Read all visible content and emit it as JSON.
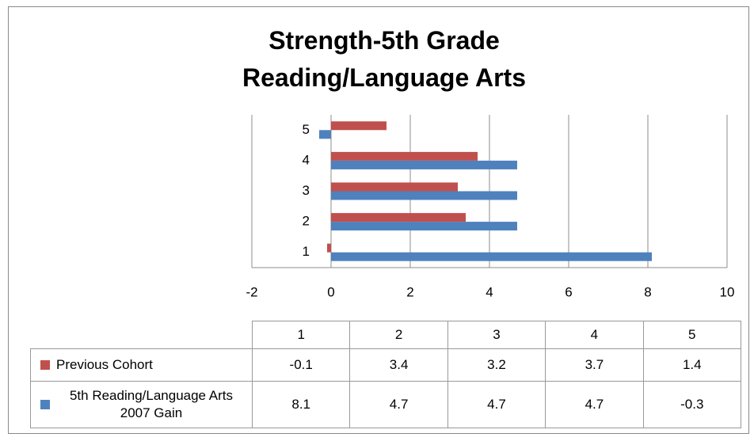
{
  "chart_data": {
    "type": "barh",
    "title": "Strength-5th Grade Reading/Language Arts",
    "categories": [
      "1",
      "2",
      "3",
      "4",
      "5"
    ],
    "series": [
      {
        "name": "Previous Cohort",
        "color": "#c0504d",
        "values": [
          -0.1,
          3.4,
          3.2,
          3.7,
          1.4
        ]
      },
      {
        "name": "5th Reading/Language Arts 2007 Gain",
        "color": "#4f81bd",
        "values": [
          8.1,
          4.7,
          4.7,
          4.7,
          -0.3
        ]
      }
    ],
    "xlim": [
      -2,
      10
    ],
    "xticks": [
      -2,
      0,
      2,
      4,
      6,
      8,
      10
    ],
    "grid": true,
    "data_table": true
  }
}
